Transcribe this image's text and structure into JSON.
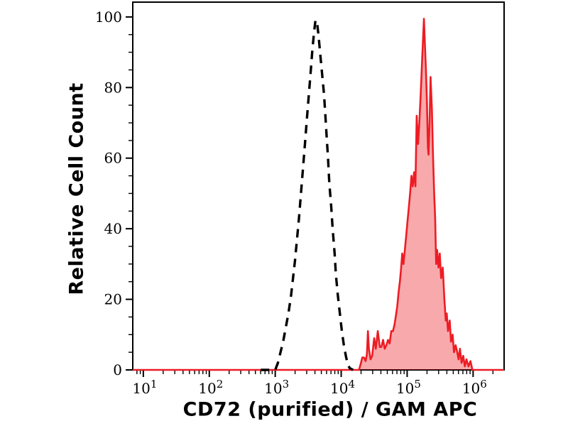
{
  "figure": {
    "background": "#ffffff"
  },
  "chart_data": {
    "type": "line",
    "chart_kind": "flow-cytometry-histogram-overlay",
    "title": "",
    "xlabel": "CD72 (purified) / GAM APC",
    "ylabel": "Relative Cell Count",
    "x_scale": "log10",
    "x_log_range": [
      0.84,
      6.47
    ],
    "ylim": [
      0,
      104.2
    ],
    "grid": false,
    "legend": "none",
    "axis_color": "#000000",
    "x_axis": {
      "major_ticks": [
        {
          "value_log10": 1,
          "base": "10",
          "exponent": "1"
        },
        {
          "value_log10": 2,
          "base": "10",
          "exponent": "2"
        },
        {
          "value_log10": 3,
          "base": "10",
          "exponent": "3"
        },
        {
          "value_log10": 4,
          "base": "10",
          "exponent": "4"
        },
        {
          "value_log10": 5,
          "base": "10",
          "exponent": "5"
        },
        {
          "value_log10": 6,
          "base": "10",
          "exponent": "6"
        }
      ],
      "minor_tick_multiples": [
        2,
        3,
        4,
        5,
        6,
        7,
        8,
        9
      ]
    },
    "y_axis": {
      "major_ticks": [
        {
          "value": 0,
          "label": "0"
        },
        {
          "value": 20,
          "label": "20"
        },
        {
          "value": 40,
          "label": "40"
        },
        {
          "value": 60,
          "label": "60"
        },
        {
          "value": 80,
          "label": "80"
        },
        {
          "value": 100,
          "label": "100"
        }
      ],
      "minor_step": 5
    },
    "series": [
      {
        "name": "red-filled-histogram",
        "description": "stained sample, solid red outline with light red fill, peak ~2x10^5",
        "line_color": "#ed1c24",
        "line_style": "solid",
        "fill": "rgba(237,28,36,0.38)",
        "points_logx_y": [
          [
            0.84,
            0
          ],
          [
            4.27,
            0
          ],
          [
            4.3,
            2
          ],
          [
            4.32,
            3.5
          ],
          [
            4.345,
            3.5
          ],
          [
            4.37,
            2.5
          ],
          [
            4.39,
            4.5
          ],
          [
            4.405,
            11
          ],
          [
            4.42,
            6
          ],
          [
            4.445,
            3
          ],
          [
            4.47,
            4
          ],
          [
            4.5,
            9
          ],
          [
            4.525,
            6
          ],
          [
            4.555,
            11
          ],
          [
            4.585,
            6.5
          ],
          [
            4.61,
            6.5
          ],
          [
            4.635,
            8.5
          ],
          [
            4.66,
            6
          ],
          [
            4.685,
            7
          ],
          [
            4.71,
            8.5
          ],
          [
            4.735,
            7.5
          ],
          [
            4.76,
            11
          ],
          [
            4.785,
            11
          ],
          [
            4.81,
            13
          ],
          [
            4.83,
            15.5
          ],
          [
            4.85,
            18
          ],
          [
            4.87,
            22
          ],
          [
            4.89,
            25
          ],
          [
            4.905,
            28
          ],
          [
            4.925,
            33
          ],
          [
            4.945,
            30
          ],
          [
            4.965,
            34
          ],
          [
            4.985,
            38
          ],
          [
            5.005,
            42
          ],
          [
            5.025,
            46
          ],
          [
            5.045,
            50
          ],
          [
            5.065,
            55
          ],
          [
            5.085,
            52
          ],
          [
            5.105,
            56
          ],
          [
            5.125,
            52
          ],
          [
            5.145,
            72
          ],
          [
            5.165,
            64
          ],
          [
            5.185,
            70
          ],
          [
            5.205,
            78
          ],
          [
            5.23,
            89
          ],
          [
            5.255,
            99.5
          ],
          [
            5.27,
            92
          ],
          [
            5.285,
            85
          ],
          [
            5.3,
            76
          ],
          [
            5.315,
            63
          ],
          [
            5.325,
            61
          ],
          [
            5.34,
            70
          ],
          [
            5.355,
            83
          ],
          [
            5.375,
            74
          ],
          [
            5.39,
            62
          ],
          [
            5.41,
            50
          ],
          [
            5.425,
            43
          ],
          [
            5.44,
            30
          ],
          [
            5.455,
            34
          ],
          [
            5.475,
            29
          ],
          [
            5.495,
            33
          ],
          [
            5.515,
            26
          ],
          [
            5.54,
            29
          ],
          [
            5.565,
            20
          ],
          [
            5.585,
            14
          ],
          [
            5.6,
            16
          ],
          [
            5.62,
            11
          ],
          [
            5.645,
            14
          ],
          [
            5.665,
            8
          ],
          [
            5.69,
            10
          ],
          [
            5.71,
            5
          ],
          [
            5.735,
            7
          ],
          [
            5.76,
            5
          ],
          [
            5.78,
            3
          ],
          [
            5.8,
            6
          ],
          [
            5.825,
            2
          ],
          [
            5.85,
            4
          ],
          [
            5.875,
            1
          ],
          [
            5.9,
            3
          ],
          [
            5.93,
            1
          ],
          [
            5.96,
            2.5
          ],
          [
            5.99,
            0
          ],
          [
            6.47,
            0
          ]
        ]
      },
      {
        "name": "dashed-black-histogram",
        "description": "negative control, black dashed outline, open, peak ~4x10^3",
        "line_color": "#000000",
        "line_style": "dashed",
        "fill": "none",
        "points_logx_y": [
          [
            2.78,
            0
          ],
          [
            3.0,
            0
          ],
          [
            3.04,
            2
          ],
          [
            3.08,
            5
          ],
          [
            3.12,
            8
          ],
          [
            3.16,
            12
          ],
          [
            3.2,
            16
          ],
          [
            3.24,
            21
          ],
          [
            3.27,
            26
          ],
          [
            3.3,
            31
          ],
          [
            3.33,
            37
          ],
          [
            3.36,
            43
          ],
          [
            3.39,
            50
          ],
          [
            3.42,
            57
          ],
          [
            3.45,
            64
          ],
          [
            3.48,
            71
          ],
          [
            3.51,
            78
          ],
          [
            3.54,
            85
          ],
          [
            3.565,
            91
          ],
          [
            3.59,
            96
          ],
          [
            3.61,
            99
          ],
          [
            3.63,
            99
          ],
          [
            3.655,
            95
          ],
          [
            3.68,
            90
          ],
          [
            3.71,
            84
          ],
          [
            3.74,
            78
          ],
          [
            3.76,
            72
          ],
          [
            3.78,
            66
          ],
          [
            3.8,
            60
          ],
          [
            3.82,
            53
          ],
          [
            3.85,
            46
          ],
          [
            3.87,
            40
          ],
          [
            3.9,
            33
          ],
          [
            3.92,
            27
          ],
          [
            3.95,
            21
          ],
          [
            3.98,
            16
          ],
          [
            4.01,
            11
          ],
          [
            4.04,
            7
          ],
          [
            4.07,
            4
          ],
          [
            4.1,
            1.5
          ],
          [
            4.13,
            0.5
          ],
          [
            4.18,
            0
          ]
        ]
      }
    ]
  }
}
